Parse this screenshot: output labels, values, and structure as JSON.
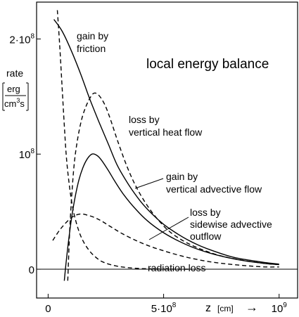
{
  "chart_data": {
    "type": "line",
    "title": "local energy balance",
    "ylabel": "rate",
    "yunit_top": "erg",
    "yunit_bottom_base": "cm",
    "yunit_bottom_exp": "3",
    "yunit_bottom_tail": "s",
    "xlabel": "z",
    "xunit": "[cm]",
    "xarrow": "→",
    "xlim": [
      -50000000,
      1080000000
    ],
    "ylim": [
      -25000000,
      232000000
    ],
    "xticks": [
      {
        "value": 0,
        "label": "0"
      },
      {
        "value": 500000000,
        "label": "5·10",
        "sup": "8"
      },
      {
        "value": 1000000000,
        "label": "10",
        "sup": "9"
      }
    ],
    "yticks": [
      {
        "value": 0,
        "label": "0"
      },
      {
        "value": 100000000,
        "label": "10",
        "sup": "8"
      },
      {
        "value": 200000000,
        "label": "2·10",
        "sup": "8"
      }
    ],
    "series": [
      {
        "name": "gain by friction",
        "style": "solid",
        "x": [
          25000000,
          60000000,
          100000000,
          140000000,
          180000000,
          220000000,
          260000000,
          300000000,
          350000000,
          400000000,
          450000000,
          500000000,
          550000000,
          600000000,
          650000000,
          700000000,
          750000000,
          800000000,
          850000000,
          900000000,
          950000000,
          1000000000
        ],
        "y": [
          217000000,
          207000000,
          190000000,
          170000000,
          148000000,
          128000000,
          109000000,
          90000000,
          73000000,
          59000000,
          48000000,
          39000000,
          32000000,
          26000000,
          21000000,
          17000000,
          13500000,
          10500000,
          8500000,
          7000000,
          5500000,
          4500000
        ]
      },
      {
        "name": "loss by vertical heat flow",
        "style": "dashed",
        "x": [
          85000000,
          95000000,
          110000000,
          125000000,
          145000000,
          165000000,
          185000000,
          200000000,
          220000000,
          245000000,
          270000000,
          300000000,
          340000000,
          380000000,
          430000000,
          480000000,
          530000000,
          600000000,
          680000000,
          760000000,
          850000000,
          940000000,
          1000000000
        ],
        "y": [
          -10000000,
          40000000,
          85000000,
          110000000,
          130000000,
          142000000,
          150000000,
          153000000,
          151000000,
          143000000,
          130000000,
          112000000,
          90000000,
          72000000,
          55000000,
          42000000,
          32000000,
          23000000,
          16000000,
          11000000,
          7500000,
          5000000,
          4000000
        ]
      },
      {
        "name": "gain by vertical advective flow",
        "style": "solid",
        "x": [
          70000000,
          80000000,
          95000000,
          110000000,
          130000000,
          150000000,
          170000000,
          190000000,
          210000000,
          230000000,
          260000000,
          290000000,
          330000000,
          380000000,
          430000000,
          490000000,
          550000000,
          620000000,
          700000000,
          780000000,
          860000000,
          940000000,
          1000000000
        ],
        "y": [
          -10000000,
          10000000,
          35000000,
          55000000,
          75000000,
          88000000,
          96000000,
          100000000,
          99000000,
          95000000,
          86000000,
          76000000,
          64000000,
          52000000,
          42000000,
          33000000,
          26000000,
          19500000,
          14000000,
          10000000,
          7000000,
          5000000,
          4000000
        ]
      },
      {
        "name": "loss by sidewise advective outflow",
        "style": "dashed",
        "x": [
          20000000,
          50000000,
          80000000,
          110000000,
          140000000,
          170000000,
          200000000,
          230000000,
          270000000,
          320000000,
          380000000,
          440000000,
          500000000,
          560000000,
          620000000,
          700000000,
          780000000,
          860000000,
          940000000,
          1000000000
        ],
        "y": [
          25000000,
          34000000,
          41000000,
          46000000,
          48000000,
          47000000,
          45000000,
          42000000,
          37000000,
          31000000,
          25000000,
          20000000,
          16000000,
          12500000,
          9500000,
          6500000,
          4500000,
          3000000,
          2000000,
          2000000
        ]
      },
      {
        "name": "radiation loss",
        "style": "dashed",
        "x": [
          40000000,
          50000000,
          60000000,
          70000000,
          80000000,
          95000000,
          110000000,
          130000000,
          150000000,
          175000000,
          200000000,
          230000000,
          270000000,
          320000000,
          380000000,
          450000000,
          530000000,
          620000000
        ],
        "y": [
          225000000,
          195000000,
          160000000,
          125000000,
          95000000,
          68000000,
          50000000,
          35000000,
          25000000,
          17000000,
          11500000,
          7000000,
          4000000,
          2000000,
          800000,
          300000,
          100000,
          0
        ]
      }
    ],
    "annotations": [
      {
        "lines": [
          "gain by",
          "friction"
        ]
      },
      {
        "lines": [
          "loss by",
          "vertical heat flow"
        ]
      },
      {
        "lines": [
          "gain by",
          "vertical advective flow"
        ]
      },
      {
        "lines": [
          "loss by",
          "sidewise advective",
          "outflow"
        ]
      },
      {
        "lines": [
          "radiation loss"
        ]
      }
    ]
  }
}
